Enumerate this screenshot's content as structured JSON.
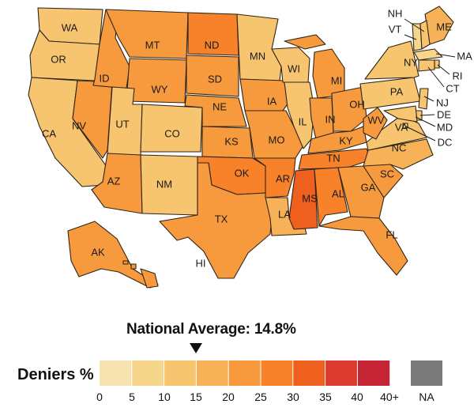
{
  "national_average_text": "National Average:  14.8%",
  "national_average_value": 14.8,
  "legend": {
    "title": "Deniers %",
    "na_label": "NA",
    "na_color": "#7a7a7a",
    "bins": [
      {
        "range": [
          0,
          5
        ],
        "color": "#f7e3b0"
      },
      {
        "range": [
          5,
          10
        ],
        "color": "#f6d68a"
      },
      {
        "range": [
          10,
          15
        ],
        "color": "#f7c46f"
      },
      {
        "range": [
          15,
          20
        ],
        "color": "#f7b258"
      },
      {
        "range": [
          20,
          25
        ],
        "color": "#f79a3d"
      },
      {
        "range": [
          25,
          30
        ],
        "color": "#f7822a"
      },
      {
        "range": [
          30,
          35
        ],
        "color": "#ef5f1e"
      },
      {
        "range": [
          35,
          40
        ],
        "color": "#dc3a2e"
      },
      {
        "range": [
          40,
          100
        ],
        "color": "#c42434"
      }
    ],
    "ticks": [
      "0",
      "5",
      "10",
      "15",
      "20",
      "25",
      "30",
      "35",
      "40",
      "40+",
      "NA"
    ]
  },
  "states": {
    "WA": {
      "label": "WA",
      "color": "#f7c46f"
    },
    "OR": {
      "label": "OR",
      "color": "#f7c46f"
    },
    "CA": {
      "label": "CA",
      "color": "#f7c46f"
    },
    "NV": {
      "label": "NV",
      "color": "#f79a3d"
    },
    "ID": {
      "label": "ID",
      "color": "#f79a3d"
    },
    "MT": {
      "label": "MT",
      "color": "#f79a3d"
    },
    "WY": {
      "label": "WY",
      "color": "#f79a3d"
    },
    "UT": {
      "label": "UT",
      "color": "#f7c46f"
    },
    "CO": {
      "label": "CO",
      "color": "#f7c46f"
    },
    "AZ": {
      "label": "AZ",
      "color": "#f79a3d"
    },
    "NM": {
      "label": "NM",
      "color": "#f7c46f"
    },
    "ND": {
      "label": "ND",
      "color": "#f7822a"
    },
    "SD": {
      "label": "SD",
      "color": "#f79a3d"
    },
    "NE": {
      "label": "NE",
      "color": "#f79a3d"
    },
    "KS": {
      "label": "KS",
      "color": "#f79a3d"
    },
    "OK": {
      "label": "OK",
      "color": "#f7822a"
    },
    "TX": {
      "label": "TX",
      "color": "#f79a3d"
    },
    "MN": {
      "label": "MN",
      "color": "#f7c46f"
    },
    "IA": {
      "label": "IA",
      "color": "#f79a3d"
    },
    "MO": {
      "label": "MO",
      "color": "#f79a3d"
    },
    "AR": {
      "label": "AR",
      "color": "#f7822a"
    },
    "LA": {
      "label": "LA",
      "color": "#f7b258"
    },
    "WI": {
      "label": "WI",
      "color": "#f7c46f"
    },
    "IL": {
      "label": "IL",
      "color": "#f7c46f"
    },
    "MI": {
      "label": "MI",
      "color": "#f79a3d"
    },
    "IN": {
      "label": "IN",
      "color": "#f79a3d"
    },
    "OH": {
      "label": "OH",
      "color": "#f79a3d"
    },
    "KY": {
      "label": "KY",
      "color": "#f79a3d"
    },
    "TN": {
      "label": "TN",
      "color": "#f7822a"
    },
    "MS": {
      "label": "MS",
      "color": "#ef5f1e"
    },
    "AL": {
      "label": "AL",
      "color": "#f7822a"
    },
    "GA": {
      "label": "GA",
      "color": "#f79a3d"
    },
    "FL": {
      "label": "FL",
      "color": "#f79a3d"
    },
    "SC": {
      "label": "SC",
      "color": "#f79a3d"
    },
    "NC": {
      "label": "NC",
      "color": "#f7b258"
    },
    "VA": {
      "label": "VA",
      "color": "#f7c46f"
    },
    "WV": {
      "label": "WV",
      "color": "#f79a3d"
    },
    "PA": {
      "label": "PA",
      "color": "#f7c46f"
    },
    "NY": {
      "label": "NY",
      "color": "#f7c46f"
    },
    "ME": {
      "label": "ME",
      "color": "#f7b258"
    },
    "VT": {
      "label": "VT",
      "color": "#f6d68a"
    },
    "NH": {
      "label": "NH",
      "color": "#f7c46f"
    },
    "MA": {
      "label": "MA",
      "color": "#f6d68a"
    },
    "RI": {
      "label": "RI",
      "color": "#f7c46f"
    },
    "CT": {
      "label": "CT",
      "color": "#f7c46f"
    },
    "NJ": {
      "label": "NJ",
      "color": "#f7c46f"
    },
    "DE": {
      "label": "DE",
      "color": "#f7c46f"
    },
    "MD": {
      "label": "MD",
      "color": "#f7c46f"
    },
    "DC": {
      "label": "DC",
      "color": "#f6d68a"
    },
    "AK": {
      "label": "AK",
      "color": "#f79a3d"
    },
    "HI": {
      "label": "HI",
      "color": "#f79a3d"
    }
  }
}
